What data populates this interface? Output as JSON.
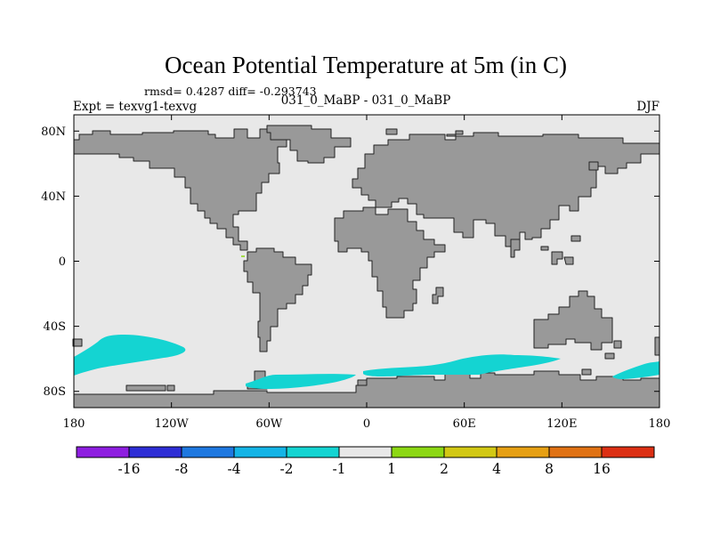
{
  "chart_data": {
    "type": "map",
    "title": "Ocean Potential Temperature at 5m (in C)",
    "stats_line": "rmsd= 0.4287 diff= -0.293743",
    "left_label": "Expt = texvg1-texvg",
    "center_label": "031_0_MaBP - 031_0_MaBP",
    "right_label": "DJF",
    "x_range": [
      -180,
      180
    ],
    "y_range": [
      -90,
      90
    ],
    "x_ticks": [
      {
        "value": -180,
        "label": "180"
      },
      {
        "value": -120,
        "label": "120W"
      },
      {
        "value": -60,
        "label": "60W"
      },
      {
        "value": 0,
        "label": "0"
      },
      {
        "value": 60,
        "label": "60E"
      },
      {
        "value": 120,
        "label": "120E"
      },
      {
        "value": 180,
        "label": "180"
      }
    ],
    "y_ticks": [
      {
        "value": 80,
        "label": "80N"
      },
      {
        "value": 40,
        "label": "40N"
      },
      {
        "value": 0,
        "label": "0"
      },
      {
        "value": -40,
        "label": "40S"
      },
      {
        "value": -80,
        "label": "80S"
      }
    ],
    "colorbar": {
      "colors": [
        "#8e1ee0",
        "#2e2ed6",
        "#1e78e0",
        "#14b4e6",
        "#14d4d2",
        "#e8e8e8",
        "#8cd814",
        "#d2c814",
        "#e6a014",
        "#e07214",
        "#dc3014"
      ],
      "labels": [
        "-16",
        "-8",
        "-4",
        "-2",
        "-1",
        "1",
        "2",
        "4",
        "8",
        "16"
      ]
    },
    "colors": {
      "land": "#999999",
      "ocean": "#e8e8e8",
      "anomaly_cool": "#14d4d2",
      "anomaly_warm": "#8cd814"
    },
    "anomaly_regions": [
      {
        "name": "South Pacific cool anomaly",
        "category": "-2 to -1",
        "lon_range": [
          -180,
          -120
        ],
        "lat_range": [
          -70,
          -45
        ]
      },
      {
        "name": "Southern Ocean cool anomaly (Atlantic/Indian)",
        "category": "-2 to -1",
        "lon_range": [
          -60,
          120
        ],
        "lat_range": [
          -78,
          -60
        ]
      },
      {
        "name": "Southern Ocean cool anomaly (Pacific)",
        "category": "-2 to -1",
        "lon_range": [
          150,
          180
        ],
        "lat_range": [
          -72,
          -62
        ]
      },
      {
        "name": "Equatorial Pacific warm speck",
        "category": "1 to 2",
        "lon_range": [
          -76,
          -74
        ],
        "lat_range": [
          3,
          5
        ]
      }
    ]
  }
}
